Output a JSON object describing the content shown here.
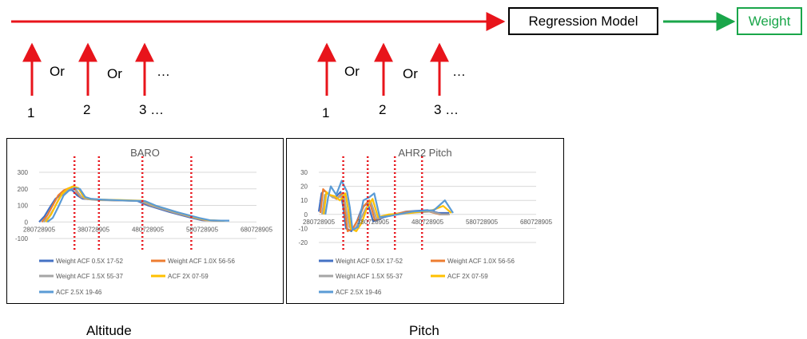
{
  "flow": {
    "model_label": "Regression Model",
    "output_label": "Weight",
    "colors": {
      "main_arrow": "#e8141b",
      "output_arrow": "#1aa64a"
    }
  },
  "left_inputs": {
    "numbers": [
      "1",
      "2",
      "3 …"
    ],
    "separators": [
      "Or",
      "Or"
    ],
    "ellipsis": "…"
  },
  "right_inputs": {
    "numbers": [
      "1",
      "2",
      "3 …"
    ],
    "separators": [
      "Or",
      "Or"
    ],
    "ellipsis": "…"
  },
  "captions": {
    "left": "Altitude",
    "right": "Pitch"
  },
  "legend": [
    {
      "name": "Weight ACF 0.5X 17-52",
      "color": "#4472c4"
    },
    {
      "name": "Weight ACF 1.0X 56-56",
      "color": "#ed7d31"
    },
    {
      "name": "Weight ACF 1.5X 55-37",
      "color": "#a5a5a5"
    },
    {
      "name": "ACF 2X 07-59",
      "color": "#ffc000"
    },
    {
      "name": "ACF 2.5X 19-46",
      "color": "#5b9bd5"
    }
  ],
  "chart_data": [
    {
      "type": "line",
      "title": "BARO",
      "xlabel": "",
      "ylabel": "",
      "ylim": [
        -100,
        300
      ],
      "yticks": [
        "300",
        "200",
        "100",
        "0",
        "-100"
      ],
      "xticks": [
        "280728905",
        "380728905",
        "480728905",
        "580728905",
        "680728905"
      ],
      "xlim": [
        280728905,
        680728905
      ],
      "grid": true,
      "legend_position": "bottom",
      "divider_x": [
        345728905,
        390728905,
        470728905,
        560728905
      ],
      "series": [
        {
          "name": "Weight ACF 0.5X 17-52",
          "x": [
            280728905,
            290728905,
            300728905,
            310728905,
            320728905,
            330728905,
            340728905,
            350728905,
            360728905,
            380728905,
            420728905,
            460728905,
            480728905,
            520728905,
            560728905,
            580728905,
            600728905,
            620728905
          ],
          "values": [
            0,
            35,
            90,
            140,
            165,
            185,
            195,
            160,
            140,
            135,
            130,
            128,
            100,
            60,
            25,
            10,
            8,
            8
          ]
        },
        {
          "name": "Weight ACF 1.0X 56-56",
          "x": [
            285728905,
            295728905,
            305728905,
            315728905,
            325728905,
            335728905,
            345728905,
            355728905,
            365728905,
            385728905,
            425728905,
            465728905,
            485728905,
            525728905,
            565728905,
            585728905,
            605728905,
            615728905
          ],
          "values": [
            0,
            40,
            100,
            160,
            190,
            205,
            200,
            155,
            140,
            135,
            130,
            128,
            100,
            60,
            25,
            10,
            8,
            8
          ]
        },
        {
          "name": "Weight ACF 1.5X 55-37",
          "x": [
            288728905,
            298728905,
            308728905,
            318728905,
            328728905,
            338728905,
            348728905,
            358728905,
            368728905,
            388728905,
            428728905,
            468728905,
            488728905,
            528728905,
            568728905,
            588728905,
            608728905,
            618728905
          ],
          "values": [
            0,
            30,
            85,
            150,
            180,
            200,
            195,
            150,
            138,
            132,
            130,
            126,
            98,
            58,
            24,
            10,
            8,
            8
          ]
        },
        {
          "name": "ACF 2X 07-59",
          "x": [
            292728905,
            302728905,
            312728905,
            322728905,
            332728905,
            342728905,
            352728905,
            362728905,
            372728905,
            392728905,
            432728905,
            472728905,
            492728905,
            532728905,
            572728905,
            592728905,
            612728905,
            622728905
          ],
          "values": [
            0,
            45,
            110,
            170,
            200,
            215,
            205,
            150,
            140,
            135,
            132,
            128,
            100,
            60,
            24,
            10,
            8,
            8
          ]
        },
        {
          "name": "ACF 2.5X 19-46",
          "x": [
            295728905,
            305728905,
            315728905,
            325728905,
            335728905,
            345728905,
            355728905,
            365728905,
            375728905,
            395728905,
            435728905,
            475728905,
            495728905,
            535728905,
            575728905,
            595728905,
            615728905,
            630728905
          ],
          "values": [
            0,
            25,
            90,
            160,
            190,
            205,
            200,
            150,
            140,
            135,
            130,
            126,
            98,
            58,
            24,
            10,
            8,
            8
          ]
        }
      ]
    },
    {
      "type": "line",
      "title": "AHR2 Pitch",
      "xlabel": "",
      "ylabel": "",
      "ylim": [
        -20,
        30
      ],
      "yticks": [
        "30",
        "20",
        "10",
        "0",
        "-10",
        "-20"
      ],
      "xticks": [
        "280728905",
        "380728905",
        "480728905",
        "580728905",
        "680728905"
      ],
      "xlim": [
        280728905,
        680728905
      ],
      "grid": true,
      "legend_position": "bottom",
      "divider_x": [
        325728905,
        370728905,
        420728905,
        470728905
      ],
      "series": [
        {
          "name": "Weight ACF 0.5X 17-52",
          "x": [
            280728905,
            285728905,
            290728905,
            300728905,
            310728905,
            320728905,
            325728905,
            330728905,
            340728905,
            350728905,
            360728905,
            370728905,
            380728905,
            400728905,
            440728905,
            480728905,
            500728905,
            520728905
          ],
          "values": [
            2,
            15,
            17,
            14,
            12,
            16,
            5,
            -10,
            -12,
            -5,
            5,
            8,
            -5,
            -2,
            2,
            3,
            1,
            1
          ]
        },
        {
          "name": "Weight ACF 1.0X 56-56",
          "x": [
            283728905,
            288728905,
            293728905,
            303728905,
            313728905,
            323728905,
            328728905,
            333728905,
            343728905,
            353728905,
            363728905,
            373728905,
            383728905,
            403728905,
            443728905,
            483728905,
            503728905,
            518728905
          ],
          "values": [
            1,
            18,
            16,
            13,
            11,
            15,
            3,
            -12,
            -10,
            -3,
            6,
            10,
            -4,
            -1,
            2,
            2,
            0,
            0
          ]
        },
        {
          "name": "Weight ACF 1.5X 55-37",
          "x": [
            286728905,
            291728905,
            296728905,
            306728905,
            316728905,
            326728905,
            331728905,
            336728905,
            346728905,
            356728905,
            366728905,
            376728905,
            386728905,
            406728905,
            446728905,
            486728905,
            506728905,
            521728905
          ],
          "values": [
            0,
            14,
            15,
            12,
            12,
            14,
            2,
            -9,
            -11,
            -4,
            4,
            9,
            -3,
            -1,
            1,
            2,
            0,
            0
          ]
        },
        {
          "name": "ACF 2X 07-59",
          "x": [
            289728905,
            294728905,
            299728905,
            309728905,
            319728905,
            329728905,
            334728905,
            339728905,
            349728905,
            359728905,
            369728905,
            379728905,
            389728905,
            409728905,
            449728905,
            489728905,
            509728905,
            524728905
          ],
          "values": [
            0,
            16,
            14,
            13,
            10,
            15,
            4,
            -10,
            -12,
            -6,
            5,
            11,
            -2,
            0,
            1,
            3,
            6,
            1
          ]
        },
        {
          "name": "ACF 2.5X 19-46",
          "x": [
            292728905,
            297728905,
            302728905,
            312728905,
            322728905,
            332728905,
            337728905,
            342728905,
            352728905,
            362728905,
            372728905,
            382728905,
            392728905,
            412728905,
            452728905,
            492728905,
            512728905,
            527728905
          ],
          "values": [
            0,
            12,
            20,
            14,
            24,
            16,
            5,
            -11,
            -9,
            10,
            12,
            15,
            -2,
            -1,
            2,
            3,
            10,
            1
          ]
        }
      ]
    }
  ]
}
